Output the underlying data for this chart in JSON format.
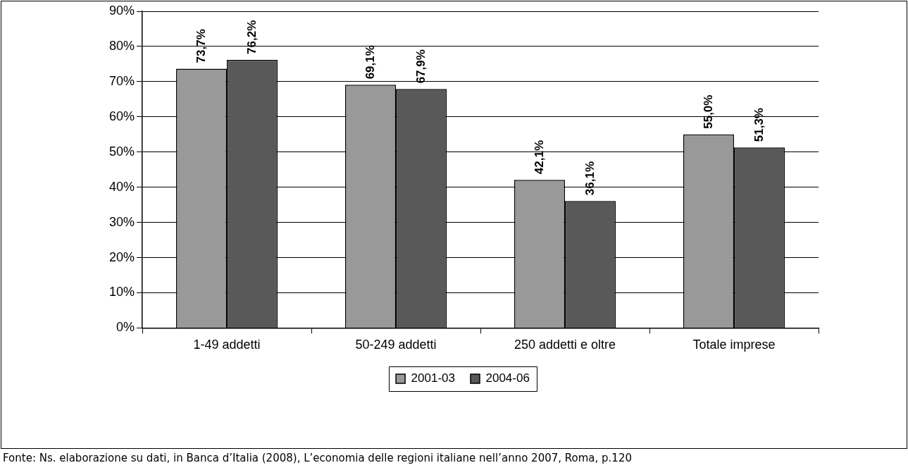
{
  "chart_data": {
    "type": "bar",
    "categories": [
      "1-49 addetti",
      "50-249 addetti",
      "250 addetti e oltre",
      "Totale imprese"
    ],
    "series": [
      {
        "name": "2001-03",
        "color": "#999999",
        "values": [
          73.7,
          69.1,
          42.1,
          55.0
        ],
        "value_labels": [
          "73,7%",
          "69,1%",
          "42,1%",
          "55,0%"
        ]
      },
      {
        "name": "2004-06",
        "color": "#595959",
        "values": [
          76.2,
          67.9,
          36.1,
          51.3
        ],
        "value_labels": [
          "76,2%",
          "67,9%",
          "36,1%",
          "51,3%"
        ]
      }
    ],
    "ylim": [
      0,
      90
    ],
    "yticks": [
      {
        "value": 0,
        "label": "0%"
      },
      {
        "value": 10,
        "label": "10%"
      },
      {
        "value": 20,
        "label": "20%"
      },
      {
        "value": 30,
        "label": "30%"
      },
      {
        "value": 40,
        "label": "40%"
      },
      {
        "value": 50,
        "label": "50%"
      },
      {
        "value": 60,
        "label": "60%"
      },
      {
        "value": 70,
        "label": "70%"
      },
      {
        "value": 80,
        "label": "80%"
      },
      {
        "value": 90,
        "label": "90%"
      }
    ],
    "grid": "y",
    "legend": "bottom",
    "annotations": [
      "Fonte: Ns. elaborazione su dati, in Banca d’Italia (2008), L’economia delle regioni italiane nell’anno 2007, Roma, p.120"
    ]
  }
}
